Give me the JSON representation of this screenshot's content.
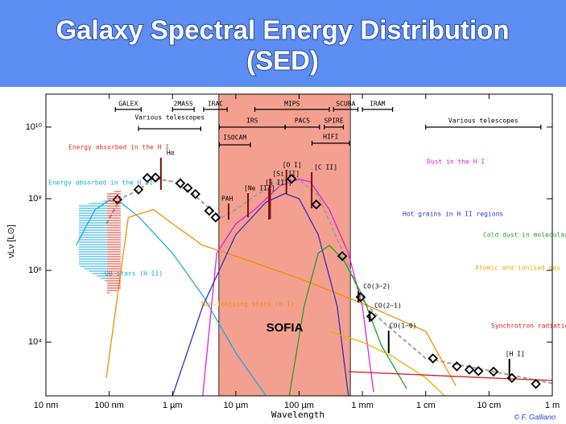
{
  "chart_data": {
    "type": "line",
    "title": [
      "Galaxy Spectral Energy Distribution",
      "(SED)"
    ],
    "x_label": "Wavelength",
    "y_label": "νLν [L⊙]",
    "x_scale": "log",
    "y_scale": "log",
    "xlim": [
      0.01,
      1000000
    ],
    "ylim": [
      316,
      83000000000
    ],
    "xticks": [
      {
        "value": 0.01,
        "label": "10 nm"
      },
      {
        "value": 0.1,
        "label": "100 nm"
      },
      {
        "value": 1,
        "label": "1 µm"
      },
      {
        "value": 10,
        "label": "10 µm"
      },
      {
        "value": 100,
        "label": "100 µm"
      },
      {
        "value": 1000,
        "label": "1 mm"
      },
      {
        "value": 10000,
        "label": "1 cm"
      },
      {
        "value": 100000,
        "label": "10 cm"
      },
      {
        "value": 1000000,
        "label": "1 m"
      }
    ],
    "yticks": [
      {
        "value": 10000,
        "label": "10⁴"
      },
      {
        "value": 1000000,
        "label": "10⁶"
      },
      {
        "value": 100000000,
        "label": "10⁸"
      },
      {
        "value": 10000000000,
        "label": "10¹⁰"
      }
    ],
    "shaded_region": {
      "label": "SOFIA",
      "range": [
        5.4,
        645
      ],
      "color": "#f4a090"
    },
    "observations": {
      "color": "#000000",
      "x": [
        0.135,
        0.29,
        0.4,
        0.54,
        1.33,
        1.74,
        2.3,
        3.8,
        4.8,
        76,
        187,
        480,
        940,
        1380,
        13000,
        31000,
        49000,
        68000,
        118000,
        230000,
        550000
      ],
      "values": [
        95000000,
        180000000,
        380000000,
        390000000,
        270000000,
        200000000,
        135000000,
        46000000,
        30000000,
        360000000,
        69000000,
        2500000,
        180000,
        52000,
        3500,
        2100,
        1700,
        1550,
        1500,
        1000,
        680
      ]
    },
    "series": [
      {
        "color": "#a0a0a0",
        "dash": true,
        "x": [
          0.09,
          0.15,
          0.3,
          0.5,
          1,
          2,
          4,
          6,
          10,
          20,
          50,
          100,
          200,
          500,
          1000,
          2000,
          10000,
          100000,
          1000000
        ],
        "y": [
          20000000,
          100000000,
          180000000,
          380000000,
          300000000,
          150000000,
          50000000,
          30000000,
          50000000,
          120000000,
          300000000,
          350000000,
          120000000,
          3000000,
          150000,
          40000,
          3500,
          1600,
          700
        ]
      },
      {
        "name": "OB stars (H II)",
        "color": "#1ba9e0",
        "x": [
          0.03,
          0.06,
          0.1,
          0.15,
          0.3,
          0.6,
          1,
          3,
          10,
          30
        ],
        "y": [
          5000000,
          50000000,
          90000000,
          80000000,
          30000000,
          8000000,
          3000000,
          200000,
          5000,
          316
        ]
      },
      {
        "name": "Non-ionising stars (H I)",
        "color": "#f09000",
        "x": [
          0.09,
          0.2,
          0.5,
          1,
          3,
          10,
          100,
          1000,
          10000,
          30000
        ],
        "y": [
          1000,
          30000000,
          50000000,
          20000000,
          5000000,
          2500000,
          600000,
          120000,
          20000,
          600
        ]
      },
      {
        "name": "Dust in the H I",
        "color": "#e020e0",
        "x": [
          3,
          5,
          10,
          20,
          50,
          100,
          150,
          300,
          600,
          1000,
          1500
        ],
        "y": [
          316,
          3000000,
          20000000,
          50000000,
          230000000,
          350000000,
          300000000,
          50000000,
          3000000,
          100000,
          400
        ]
      },
      {
        "name": "Hot grains in H II regions",
        "color": "#3030c0",
        "x": [
          1,
          3,
          10,
          30,
          60,
          100,
          200,
          400,
          600
        ],
        "y": [
          316,
          100000,
          10000000,
          80000000,
          140000000,
          100000000,
          10000000,
          100000,
          316
        ]
      },
      {
        "name": "Cold dust in molecular clouds",
        "color": "#20a020",
        "x": [
          70,
          120,
          200,
          300,
          500,
          1000,
          2000,
          5000
        ],
        "y": [
          316,
          100000,
          3000000,
          5000000,
          2000000,
          200000,
          8000,
          500
        ]
      },
      {
        "name": "Atomic and ionised gas",
        "color": "#e8b000",
        "x": [
          300,
          1000,
          3000,
          10000,
          20000
        ],
        "y": [
          20000,
          10000,
          4000,
          1000,
          316
        ]
      },
      {
        "name": "Synchrotron radiation",
        "color": "#d02020",
        "x": [
          600,
          10000,
          100000,
          1000000
        ],
        "y": [
          1500,
          1200,
          1000,
          850
        ]
      }
    ],
    "instruments": [
      {
        "label": "GALEX",
        "range": [
          0.125,
          0.32
        ]
      },
      {
        "label": "2MASS",
        "range": [
          1,
          2.2
        ]
      },
      {
        "label": "IRAC",
        "range": [
          3.1,
          7.3
        ]
      },
      {
        "label": "MIPS",
        "range": [
          20,
          300
        ]
      },
      {
        "label": "SCUBA",
        "range": [
          350,
          850
        ]
      },
      {
        "label": "IRAM",
        "range": [
          1000,
          3000
        ]
      },
      {
        "label": "Various telescopes",
        "range": [
          0.29,
          2.8
        ]
      },
      {
        "label": "IRS",
        "range": [
          5.5,
          60
        ]
      },
      {
        "label": "PACS",
        "range": [
          60,
          210
        ]
      },
      {
        "label": "SPIRE",
        "range": [
          250,
          500
        ]
      },
      {
        "label": "ISOCAM",
        "range": [
          5.5,
          17
        ]
      },
      {
        "label": "HIFI",
        "range": [
          160,
          625
        ]
      },
      {
        "label": "Various telescopes",
        "range": [
          10000,
          660000
        ]
      }
    ],
    "lines": [
      {
        "label": "Hα",
        "x": 0.656
      },
      {
        "label": "[O I]",
        "x": 63
      },
      {
        "label": "[C II]",
        "x": 158
      },
      {
        "label": "PAH",
        "x": 7.7
      },
      {
        "label": "[Ne III]",
        "x": 15.6
      },
      {
        "label": "[S III]",
        "x": 33.5
      },
      {
        "label": "[Si II]",
        "x": 34.8
      },
      {
        "label": "CO(3−2)",
        "x": 867
      },
      {
        "label": "CO(2−1)",
        "x": 1300
      },
      {
        "label": "CO(1−0)",
        "x": 2600
      },
      {
        "label": "[H I]",
        "x": 210000
      }
    ],
    "annotations": [
      "Energy absorbed in the H I",
      "Energy absorbed in the H II"
    ],
    "credit": "© F. Galliano"
  }
}
